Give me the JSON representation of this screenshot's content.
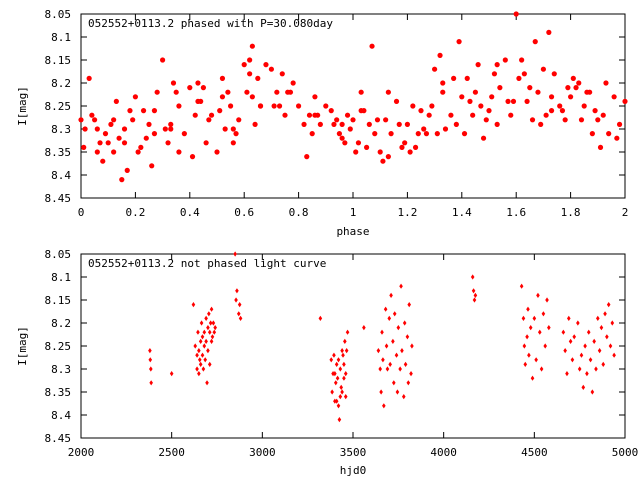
{
  "chart_data": [
    {
      "type": "scatter",
      "title": "052552+0113.2 phased with P=30.080day",
      "xlabel": "phase",
      "ylabel": "I[mag]",
      "xlim": [
        0,
        2
      ],
      "ylim": [
        8.45,
        8.05
      ],
      "y_inverted": true,
      "grid": false,
      "x_ticks": [
        "0",
        "0.2",
        "0.4",
        "0.6",
        "0.8",
        "1",
        "1.2",
        "1.4",
        "1.6",
        "1.8",
        "2"
      ],
      "y_ticks": [
        "8.05",
        "8.1",
        "8.15",
        "8.2",
        "8.25",
        "8.3",
        "8.35",
        "8.4",
        "8.45"
      ],
      "marker_color": "#ff0000",
      "marker": "filled-circle",
      "series": [
        {
          "x": [
            0.0,
            0.01,
            0.015,
            0.03,
            0.04,
            0.05,
            0.06,
            0.07,
            0.08,
            0.09,
            0.1,
            0.11,
            0.12,
            0.13,
            0.14,
            0.15,
            0.16,
            0.17,
            0.18,
            0.19,
            0.2,
            0.21,
            0.22,
            0.23,
            0.24,
            0.25,
            0.26,
            0.27,
            0.28,
            0.3,
            0.31,
            0.32,
            0.33,
            0.34,
            0.35,
            0.36,
            0.38,
            0.4,
            0.41,
            0.42,
            0.43,
            0.44,
            0.45,
            0.46,
            0.48,
            0.5,
            0.51,
            0.52,
            0.54,
            0.55,
            0.56,
            0.57,
            0.58,
            0.6,
            0.61,
            0.62,
            0.63,
            0.64,
            0.65,
            0.66,
            0.68,
            0.7,
            0.71,
            0.72,
            0.74,
            0.75,
            0.76,
            0.78,
            0.8,
            0.82,
            0.84,
            0.85,
            0.86,
            0.88,
            0.9,
            0.92,
            0.94,
            0.95,
            0.96,
            0.98,
            0.99,
            1.0,
            1.01,
            1.02,
            1.03,
            1.04,
            1.05,
            1.06,
            1.08,
            1.1,
            1.11,
            1.12,
            1.13,
            1.14,
            1.16,
            1.18,
            1.2,
            1.21,
            1.22,
            1.24,
            1.25,
            1.26,
            1.28,
            1.3,
            1.31,
            1.32,
            1.33,
            1.34,
            1.36,
            1.38,
            1.4,
            1.41,
            1.42,
            1.44,
            1.45,
            1.46,
            1.48,
            1.5,
            1.51,
            1.52,
            1.53,
            1.54,
            1.56,
            1.58,
            1.6,
            1.61,
            1.62,
            1.64,
            1.65,
            1.66,
            1.68,
            1.7,
            1.71,
            1.72,
            1.73,
            1.74,
            1.76,
            1.78,
            1.8,
            1.81,
            1.82,
            1.84,
            1.85,
            1.86,
            1.88,
            1.9,
            1.91,
            1.92,
            1.93,
            1.94,
            1.96,
            1.98,
            2.0
          ],
          "y": [
            8.28,
            8.34,
            8.3,
            8.19,
            8.27,
            8.28,
            8.35,
            8.33,
            8.37,
            8.31,
            8.33,
            8.29,
            8.28,
            8.24,
            8.32,
            8.41,
            8.3,
            8.39,
            8.26,
            8.28,
            8.23,
            8.35,
            8.34,
            8.26,
            8.32,
            8.29,
            8.38,
            8.26,
            8.22,
            8.15,
            8.3,
            8.33,
            8.29,
            8.2,
            8.22,
            8.35,
            8.31,
            8.21,
            8.36,
            8.27,
            8.2,
            8.24,
            8.21,
            8.33,
            8.27,
            8.35,
            8.26,
            8.19,
            8.22,
            8.25,
            8.33,
            8.31,
            8.28,
            8.16,
            8.22,
            8.18,
            8.12,
            8.29,
            8.19,
            8.25,
            8.16,
            8.17,
            8.25,
            8.22,
            8.18,
            8.27,
            8.22,
            8.2,
            8.25,
            8.29,
            8.27,
            8.31,
            8.23,
            8.29,
            8.25,
            8.26,
            8.28,
            8.31,
            8.32,
            8.27,
            8.3,
            8.28,
            8.35,
            8.33,
            8.22,
            8.26,
            8.34,
            8.29,
            8.31,
            8.35,
            8.37,
            8.28,
            8.36,
            8.31,
            8.24,
            8.34,
            8.29,
            8.35,
            8.25,
            8.31,
            8.26,
            8.3,
            8.27,
            8.17,
            8.31,
            8.14,
            8.22,
            8.3,
            8.27,
            8.29,
            8.23,
            8.31,
            8.19,
            8.27,
            8.22,
            8.16,
            8.32,
            8.26,
            8.23,
            8.18,
            8.29,
            8.21,
            8.15,
            8.27,
            8.05,
            8.19,
            8.15,
            8.24,
            8.21,
            8.28,
            8.22,
            8.17,
            8.27,
            8.09,
            8.23,
            8.18,
            8.25,
            8.28,
            8.23,
            8.19,
            8.21,
            8.28,
            8.25,
            8.22,
            8.31,
            8.28,
            8.34,
            8.27,
            8.2,
            8.31,
            8.23,
            8.29,
            8.24
          ],
          "x_extra": [
            0.12,
            0.27,
            0.47,
            0.52,
            0.62,
            0.77,
            0.87,
            0.97,
            1.07,
            1.17,
            1.27,
            1.37,
            1.47,
            1.57,
            1.67,
            1.77,
            1.87,
            1.97,
            1.03,
            1.13,
            1.23,
            1.33,
            1.43,
            1.53,
            1.63,
            1.73,
            1.83,
            0.33,
            0.43,
            0.53,
            0.63,
            0.73,
            0.83,
            0.93,
            1.09,
            1.19,
            1.29,
            1.39,
            1.49,
            1.59,
            1.69,
            1.79,
            1.89,
            0.06,
            0.16,
            0.36,
            0.56,
            0.66,
            0.86,
            0.96
          ],
          "y_extra": [
            8.35,
            8.31,
            8.28,
            8.23,
            8.15,
            8.22,
            8.27,
            8.33,
            8.12,
            8.29,
            8.31,
            8.19,
            8.25,
            8.24,
            8.11,
            8.26,
            8.22,
            8.32,
            8.26,
            8.22,
            8.34,
            8.2,
            8.24,
            8.16,
            8.18,
            8.26,
            8.2,
            8.3,
            8.24,
            8.3,
            8.23,
            8.25,
            8.36,
            8.29,
            8.28,
            8.33,
            8.25,
            8.11,
            8.28,
            8.24,
            8.29,
            8.21,
            8.26,
            8.3,
            8.33,
            8.25,
            8.3,
            8.25,
            8.27,
            8.29
          ]
        }
      ]
    },
    {
      "type": "scatter",
      "title": "052552+0113.2 not phased light curve",
      "xlabel": "hjd0",
      "ylabel": "I[mag]",
      "xlim": [
        2000,
        5000
      ],
      "ylim": [
        8.45,
        8.05
      ],
      "y_inverted": true,
      "grid": false,
      "x_ticks": [
        "2000",
        "2500",
        "3000",
        "3500",
        "4000",
        "4500",
        "5000"
      ],
      "y_ticks": [
        "8.05",
        "8.1",
        "8.15",
        "8.2",
        "8.25",
        "8.3",
        "8.35",
        "8.4",
        "8.45"
      ],
      "marker_color": "#ff0000",
      "marker": "small-diamond",
      "series": [
        {
          "x": [
            2380,
            2385,
            2387,
            2382,
            2500,
            2620,
            2630,
            2640,
            2640,
            2645,
            2650,
            2650,
            2655,
            2660,
            2660,
            2665,
            2670,
            2670,
            2675,
            2680,
            2680,
            2685,
            2690,
            2690,
            2695,
            2700,
            2700,
            2705,
            2710,
            2710,
            2715,
            2720,
            2720,
            2725,
            2730,
            2735,
            2740,
            2850,
            2855,
            2860,
            2870,
            2875,
            2880,
            3320,
            3380,
            3385,
            3390,
            3395,
            3400,
            3400,
            3405,
            3410,
            3410,
            3415,
            3420,
            3420,
            3425,
            3430,
            3430,
            3435,
            3440,
            3440,
            3445,
            3450,
            3450,
            3455,
            3460,
            3460,
            3465,
            3470,
            3560,
            3640,
            3650,
            3655,
            3660,
            3665,
            3670,
            3680,
            3685,
            3690,
            3700,
            3705,
            3710,
            3720,
            3725,
            3730,
            3740,
            3745,
            3750,
            3760,
            3765,
            3770,
            3780,
            3785,
            3790,
            3800,
            3805,
            3810,
            3820,
            3825,
            4160,
            4165,
            4170,
            4175,
            4430,
            4440,
            4445,
            4450,
            4460,
            4465,
            4470,
            4480,
            4490,
            4500,
            4510,
            4520,
            4530,
            4540,
            4550,
            4560,
            4570,
            4580,
            4660,
            4670,
            4680,
            4690,
            4700,
            4710,
            4720,
            4740,
            4750,
            4760,
            4770,
            4780,
            4790,
            4800,
            4810,
            4820,
            4830,
            4840,
            4850,
            4860,
            4870,
            4880,
            4890,
            4900,
            4910,
            4920,
            4930,
            4940
          ],
          "y": [
            8.26,
            8.3,
            8.33,
            8.28,
            8.31,
            8.16,
            8.25,
            8.27,
            8.3,
            8.22,
            8.26,
            8.31,
            8.28,
            8.24,
            8.29,
            8.2,
            8.27,
            8.23,
            8.3,
            8.22,
            8.25,
            8.28,
            8.19,
            8.24,
            8.33,
            8.21,
            8.26,
            8.18,
            8.22,
            8.29,
            8.2,
            8.24,
            8.17,
            8.23,
            8.2,
            8.22,
            8.21,
            8.05,
            8.15,
            8.13,
            8.18,
            8.16,
            8.19,
            8.19,
            8.28,
            8.35,
            8.31,
            8.27,
            8.37,
            8.31,
            8.33,
            8.29,
            8.37,
            8.32,
            8.38,
            8.28,
            8.41,
            8.36,
            8.3,
            8.34,
            8.26,
            8.35,
            8.27,
            8.32,
            8.29,
            8.24,
            8.36,
            8.31,
            8.26,
            8.22,
            8.21,
            8.26,
            8.3,
            8.35,
            8.22,
            8.28,
            8.38,
            8.17,
            8.25,
            8.3,
            8.19,
            8.29,
            8.14,
            8.24,
            8.33,
            8.18,
            8.27,
            8.35,
            8.21,
            8.3,
            8.12,
            8.26,
            8.36,
            8.2,
            8.29,
            8.23,
            8.33,
            8.16,
            8.31,
            8.25,
            8.1,
            8.13,
            8.15,
            8.14,
            8.12,
            8.19,
            8.25,
            8.29,
            8.23,
            8.17,
            8.27,
            8.21,
            8.32,
            8.19,
            8.28,
            8.14,
            8.22,
            8.3,
            8.18,
            8.25,
            8.15,
            8.21,
            8.22,
            8.26,
            8.31,
            8.19,
            8.24,
            8.28,
            8.23,
            8.2,
            8.3,
            8.27,
            8.34,
            8.25,
            8.31,
            8.22,
            8.28,
            8.35,
            8.24,
            8.3,
            8.19,
            8.26,
            8.21,
            8.29,
            8.18,
            8.23,
            8.16,
            8.25,
            8.2,
            8.27
          ]
        }
      ]
    }
  ]
}
